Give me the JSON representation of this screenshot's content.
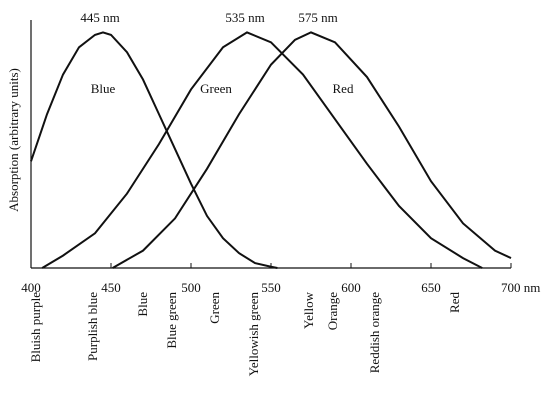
{
  "chart_data": {
    "type": "line",
    "ylabel": "Absorption (arbitrary units)",
    "xlim": [
      400,
      700
    ],
    "xticks": [
      400,
      450,
      500,
      550,
      600,
      650,
      {
        "value": 700,
        "label": "700 nm"
      }
    ],
    "ylim": [
      0,
      1
    ],
    "peak_labels": [
      "445 nm",
      "535 nm",
      "575 nm"
    ],
    "color_names": [
      "Bluish purple",
      "Purplish blue",
      "Blue",
      "Blue green",
      "Green",
      "Yellowish green",
      "Yellow",
      "Orange",
      "Reddish orange",
      "Red"
    ],
    "series": [
      {
        "name": "Blue",
        "color": "#111111",
        "x": [
          400,
          410,
          420,
          430,
          440,
          445,
          450,
          460,
          470,
          480,
          490,
          500,
          510,
          520,
          530,
          540,
          550,
          554
        ],
        "values": [
          0.43,
          0.62,
          0.78,
          0.89,
          0.94,
          0.95,
          0.94,
          0.87,
          0.76,
          0.62,
          0.48,
          0.34,
          0.21,
          0.12,
          0.06,
          0.02,
          0.005,
          0
        ]
      },
      {
        "name": "Green",
        "color": "#111111",
        "x": [
          407,
          420,
          440,
          460,
          480,
          500,
          520,
          535,
          550,
          570,
          590,
          610,
          630,
          650,
          670,
          682
        ],
        "values": [
          0,
          0.05,
          0.14,
          0.3,
          0.5,
          0.72,
          0.89,
          0.95,
          0.91,
          0.78,
          0.6,
          0.42,
          0.25,
          0.12,
          0.04,
          0
        ]
      },
      {
        "name": "Red",
        "color": "#111111",
        "x": [
          451,
          470,
          490,
          510,
          530,
          550,
          565,
          575,
          590,
          610,
          630,
          650,
          670,
          690,
          700
        ],
        "values": [
          0,
          0.07,
          0.2,
          0.4,
          0.62,
          0.82,
          0.92,
          0.95,
          0.91,
          0.77,
          0.57,
          0.35,
          0.18,
          0.07,
          0.04
        ]
      }
    ]
  }
}
